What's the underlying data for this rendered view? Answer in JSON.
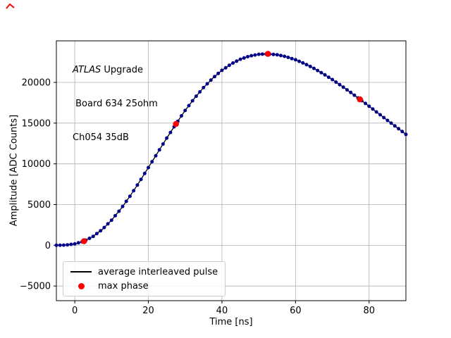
{
  "figure": {
    "background": "#ffffff",
    "corner_marker_color": "#ff0000"
  },
  "chart_data": {
    "type": "line",
    "title": "",
    "xlabel": "Time [ns]",
    "ylabel": "Amplitude [ADC Counts]",
    "xlim": [
      -5,
      90
    ],
    "ylim": [
      -6800,
      25100
    ],
    "xticks": [
      0,
      20,
      40,
      60,
      80
    ],
    "yticks": [
      -5000,
      0,
      5000,
      10000,
      15000,
      20000
    ],
    "grid": true,
    "legend_position": "lower left",
    "colors": {
      "grid": "#b0b0b0",
      "axes": "#000000",
      "background": "#ffffff"
    },
    "annotation": {
      "line1_italic": "ATLAS",
      "line1_rest": " Upgrade",
      "line2": " Board 634 25ohm",
      "line3": "Ch054 35dB"
    },
    "series": [
      {
        "name": "average interleaved pulse",
        "style": "line_with_dot_markers",
        "line_color": "#000000",
        "marker_color": "#00008b",
        "marker_step_ns": 1,
        "x": [
          -5,
          -2.5,
          0,
          2.5,
          5,
          7.5,
          10,
          12.5,
          15,
          17.5,
          20,
          22.5,
          25,
          27.5,
          30,
          32.5,
          35,
          37.5,
          40,
          42.5,
          45,
          47.5,
          50,
          52.5,
          55,
          57.5,
          60,
          62.5,
          65,
          67.5,
          70,
          72.5,
          75,
          77.5,
          80,
          82.5,
          85,
          87.5,
          90
        ],
        "y": [
          0,
          30,
          170,
          505,
          1090,
          1957,
          3085,
          4455,
          6020,
          7739,
          9540,
          11358,
          13160,
          14900,
          16550,
          18037,
          19360,
          20518,
          21480,
          22257,
          22840,
          23233,
          23450,
          23497,
          23390,
          23145,
          22775,
          22294,
          21720,
          21064,
          20345,
          19572,
          18760,
          17922,
          17070,
          16196,
          15335,
          14485,
          13620
        ]
      },
      {
        "name": "max phase",
        "style": "dot_markers",
        "color": "#ff0000",
        "x": [
          2.5,
          27.5,
          52.5,
          77.5
        ],
        "y": [
          505,
          14900,
          23497,
          17922
        ]
      }
    ]
  }
}
